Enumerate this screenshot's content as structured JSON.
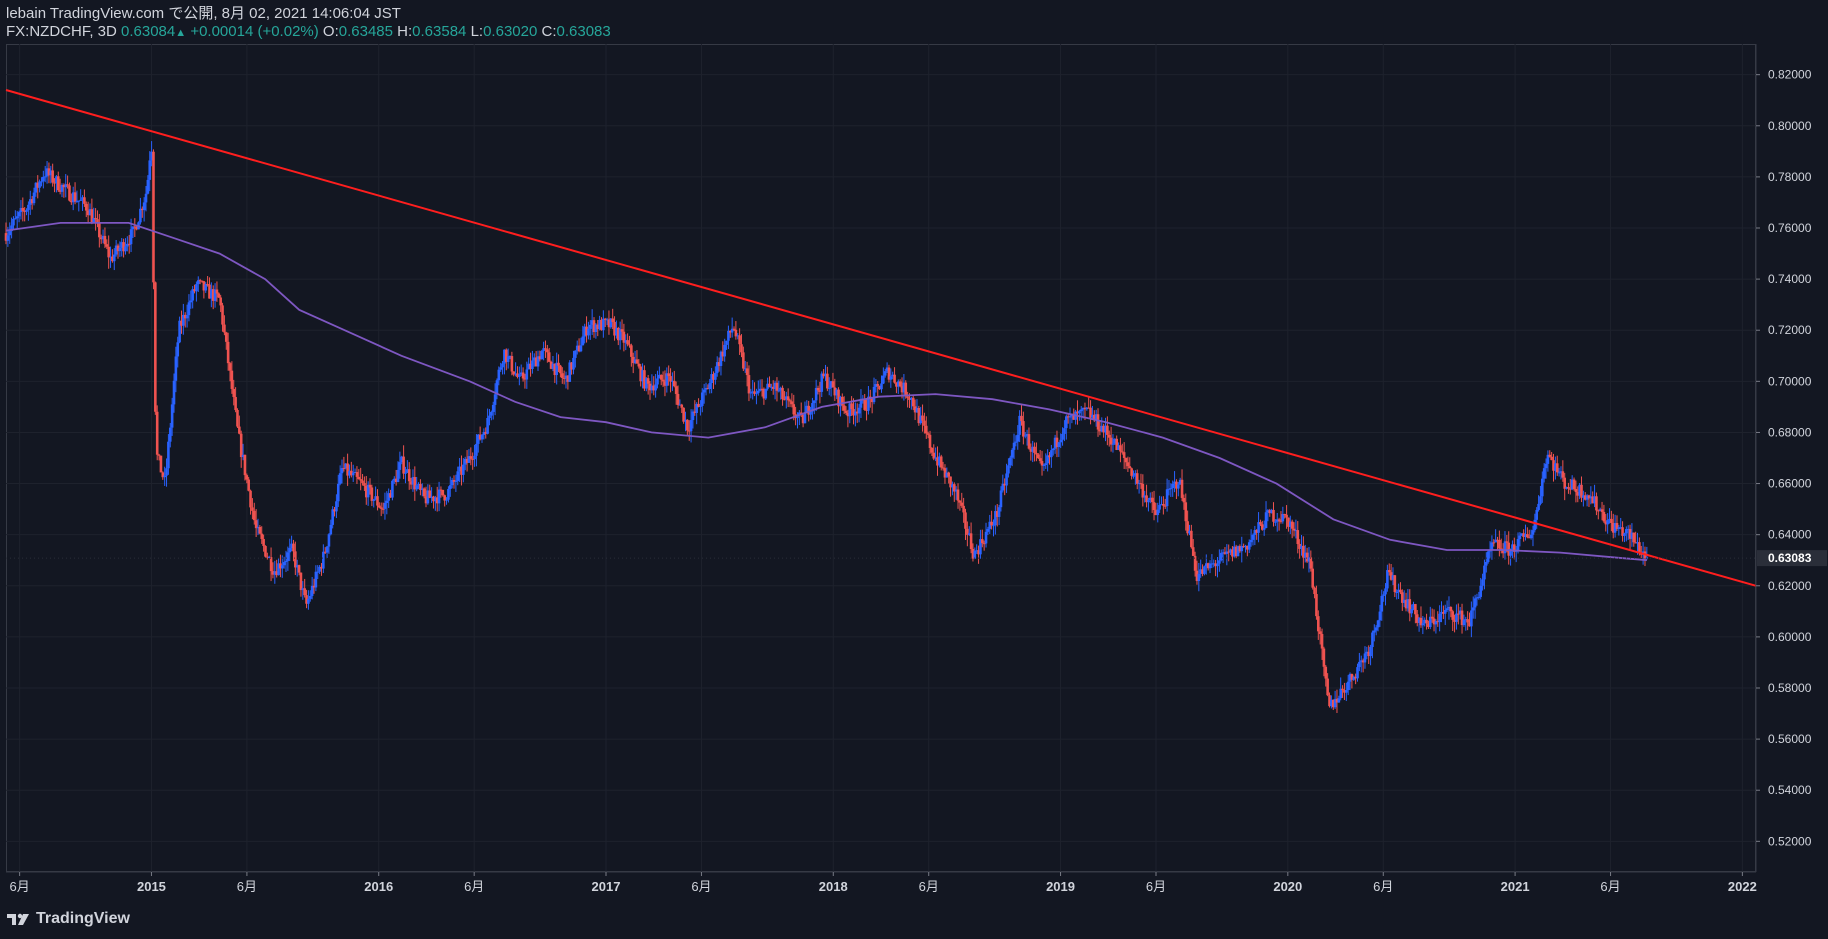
{
  "header": {
    "line1": "lebain TradingView.com で公開, 8月 02, 2021 14:06:04 JST",
    "symbol": "FX:NZDCHF, 3D",
    "last": "0.63084",
    "change": "+0.00014 (+0.02%)",
    "o_label": "O:",
    "o_val": "0.63485",
    "h_label": "H:",
    "h_val": "0.63584",
    "l_label": "L:",
    "l_val": "0.63020",
    "c_label": "C:",
    "c_val": "0.63083"
  },
  "logo": {
    "text": "TradingView",
    "icon": "tradingview-logo-icon"
  },
  "colors": {
    "bg": "#131722",
    "up": "#2962ff",
    "down": "#ef5350",
    "ma": "#7e57c2",
    "trend": "#ff1e1e",
    "text": "#d1d4dc",
    "grid": "#1e222d"
  },
  "chart_data": {
    "type": "candlestick",
    "symbol": "FX:NZDCHF",
    "interval": "3D",
    "y_axis": {
      "min": 0.508,
      "max": 0.832,
      "ticks": [
        "0.82000",
        "0.80000",
        "0.78000",
        "0.76000",
        "0.74000",
        "0.72000",
        "0.70000",
        "0.68000",
        "0.66000",
        "0.64000",
        "0.62000",
        "0.60000",
        "0.58000",
        "0.56000",
        "0.54000",
        "0.52000"
      ]
    },
    "x_axis": {
      "start": 2014.36,
      "end": 2022.06,
      "ticks": [
        {
          "t": 2014.42,
          "label": "6月"
        },
        {
          "t": 2015.0,
          "label": "2015"
        },
        {
          "t": 2015.42,
          "label": "6月"
        },
        {
          "t": 2016.0,
          "label": "2016"
        },
        {
          "t": 2016.42,
          "label": "6月"
        },
        {
          "t": 2017.0,
          "label": "2017"
        },
        {
          "t": 2017.42,
          "label": "6月"
        },
        {
          "t": 2018.0,
          "label": "2018"
        },
        {
          "t": 2018.42,
          "label": "6月"
        },
        {
          "t": 2019.0,
          "label": "2019"
        },
        {
          "t": 2019.42,
          "label": "6月"
        },
        {
          "t": 2020.0,
          "label": "2020"
        },
        {
          "t": 2020.42,
          "label": "6月"
        },
        {
          "t": 2021.0,
          "label": "2021"
        },
        {
          "t": 2021.42,
          "label": "6月"
        },
        {
          "t": 2022.0,
          "label": "2022"
        }
      ]
    },
    "last_price": {
      "value": 0.63083,
      "label": "0.63083"
    },
    "close_series": [
      [
        2014.36,
        0.758
      ],
      [
        2014.45,
        0.768
      ],
      [
        2014.53,
        0.782
      ],
      [
        2014.62,
        0.775
      ],
      [
        2014.72,
        0.768
      ],
      [
        2014.82,
        0.748
      ],
      [
        2014.92,
        0.758
      ],
      [
        2014.98,
        0.775
      ],
      [
        2015.0,
        0.796
      ],
      [
        2015.02,
        0.672
      ],
      [
        2015.06,
        0.66
      ],
      [
        2015.12,
        0.72
      ],
      [
        2015.2,
        0.738
      ],
      [
        2015.3,
        0.732
      ],
      [
        2015.38,
        0.68
      ],
      [
        2015.46,
        0.642
      ],
      [
        2015.54,
        0.626
      ],
      [
        2015.62,
        0.634
      ],
      [
        2015.68,
        0.612
      ],
      [
        2015.76,
        0.632
      ],
      [
        2015.84,
        0.666
      ],
      [
        2015.92,
        0.66
      ],
      [
        2016.02,
        0.65
      ],
      [
        2016.1,
        0.668
      ],
      [
        2016.2,
        0.654
      ],
      [
        2016.3,
        0.656
      ],
      [
        2016.4,
        0.67
      ],
      [
        2016.48,
        0.684
      ],
      [
        2016.55,
        0.712
      ],
      [
        2016.62,
        0.7
      ],
      [
        2016.72,
        0.712
      ],
      [
        2016.82,
        0.7
      ],
      [
        2016.92,
        0.722
      ],
      [
        2017.02,
        0.722
      ],
      [
        2017.08,
        0.716
      ],
      [
        2017.18,
        0.698
      ],
      [
        2017.28,
        0.702
      ],
      [
        2017.36,
        0.682
      ],
      [
        2017.46,
        0.7
      ],
      [
        2017.56,
        0.722
      ],
      [
        2017.64,
        0.694
      ],
      [
        2017.74,
        0.698
      ],
      [
        2017.86,
        0.684
      ],
      [
        2017.96,
        0.702
      ],
      [
        2018.06,
        0.688
      ],
      [
        2018.16,
        0.692
      ],
      [
        2018.24,
        0.704
      ],
      [
        2018.34,
        0.694
      ],
      [
        2018.44,
        0.672
      ],
      [
        2018.54,
        0.656
      ],
      [
        2018.62,
        0.632
      ],
      [
        2018.72,
        0.648
      ],
      [
        2018.82,
        0.684
      ],
      [
        2018.92,
        0.664
      ],
      [
        2019.02,
        0.684
      ],
      [
        2019.12,
        0.688
      ],
      [
        2019.22,
        0.678
      ],
      [
        2019.32,
        0.664
      ],
      [
        2019.42,
        0.648
      ],
      [
        2019.52,
        0.662
      ],
      [
        2019.6,
        0.624
      ],
      [
        2019.7,
        0.63
      ],
      [
        2019.82,
        0.636
      ],
      [
        2019.92,
        0.648
      ],
      [
        2020.0,
        0.646
      ],
      [
        2020.1,
        0.628
      ],
      [
        2020.18,
        0.572
      ],
      [
        2020.28,
        0.584
      ],
      [
        2020.36,
        0.596
      ],
      [
        2020.44,
        0.624
      ],
      [
        2020.52,
        0.614
      ],
      [
        2020.6,
        0.604
      ],
      [
        2020.7,
        0.61
      ],
      [
        2020.8,
        0.606
      ],
      [
        2020.9,
        0.636
      ],
      [
        2020.98,
        0.634
      ],
      [
        2021.08,
        0.642
      ],
      [
        2021.14,
        0.672
      ],
      [
        2021.22,
        0.66
      ],
      [
        2021.32,
        0.656
      ],
      [
        2021.42,
        0.644
      ],
      [
        2021.5,
        0.64
      ],
      [
        2021.58,
        0.631
      ]
    ],
    "ma_series": [
      [
        2014.36,
        0.759
      ],
      [
        2014.6,
        0.762
      ],
      [
        2014.9,
        0.762
      ],
      [
        2015.1,
        0.756
      ],
      [
        2015.3,
        0.75
      ],
      [
        2015.5,
        0.74
      ],
      [
        2015.65,
        0.728
      ],
      [
        2015.85,
        0.72
      ],
      [
        2016.1,
        0.71
      ],
      [
        2016.4,
        0.7
      ],
      [
        2016.6,
        0.692
      ],
      [
        2016.8,
        0.686
      ],
      [
        2017.0,
        0.684
      ],
      [
        2017.2,
        0.68
      ],
      [
        2017.45,
        0.678
      ],
      [
        2017.7,
        0.682
      ],
      [
        2017.95,
        0.69
      ],
      [
        2018.2,
        0.694
      ],
      [
        2018.45,
        0.695
      ],
      [
        2018.7,
        0.693
      ],
      [
        2018.95,
        0.689
      ],
      [
        2019.2,
        0.684
      ],
      [
        2019.45,
        0.678
      ],
      [
        2019.7,
        0.67
      ],
      [
        2019.95,
        0.66
      ],
      [
        2020.2,
        0.646
      ],
      [
        2020.45,
        0.638
      ],
      [
        2020.7,
        0.634
      ],
      [
        2020.95,
        0.634
      ],
      [
        2021.2,
        0.633
      ],
      [
        2021.45,
        0.631
      ],
      [
        2021.58,
        0.63
      ]
    ],
    "trendline": {
      "from": [
        2014.36,
        0.814
      ],
      "to": [
        2022.06,
        0.62
      ]
    }
  }
}
